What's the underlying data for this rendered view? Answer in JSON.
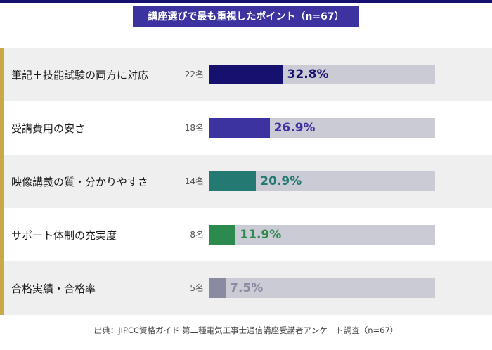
{
  "title": "講座選びで最も重視したポイント（n=67）",
  "source": "出典：JIPCC資格ガイド 第二種電気工事士通信講座受講者アンケート調査（n=67）",
  "chart_data": {
    "type": "bar",
    "orientation": "horizontal",
    "title": "講座選びで最も重視したポイント（n=67）",
    "categories": [
      "筆記＋技能試験の両方に対応",
      "受講費用の安さ",
      "映像講義の質・分かりやすさ",
      "サポート体制の充実度",
      "合格実績・合格率"
    ],
    "values": [
      32.8,
      26.9,
      20.9,
      11.9,
      7.5
    ],
    "value_labels": [
      "32.8%",
      "26.9%",
      "20.9%",
      "11.9%",
      "7.5%"
    ],
    "counts": [
      "22名",
      "18名",
      "14名",
      "8名",
      "5名"
    ],
    "colors": [
      "#16106e",
      "#3c32a0",
      "#247a72",
      "#2c8a4e",
      "#8a8aa0"
    ],
    "xlim": [
      0,
      100
    ],
    "unit": "%"
  }
}
